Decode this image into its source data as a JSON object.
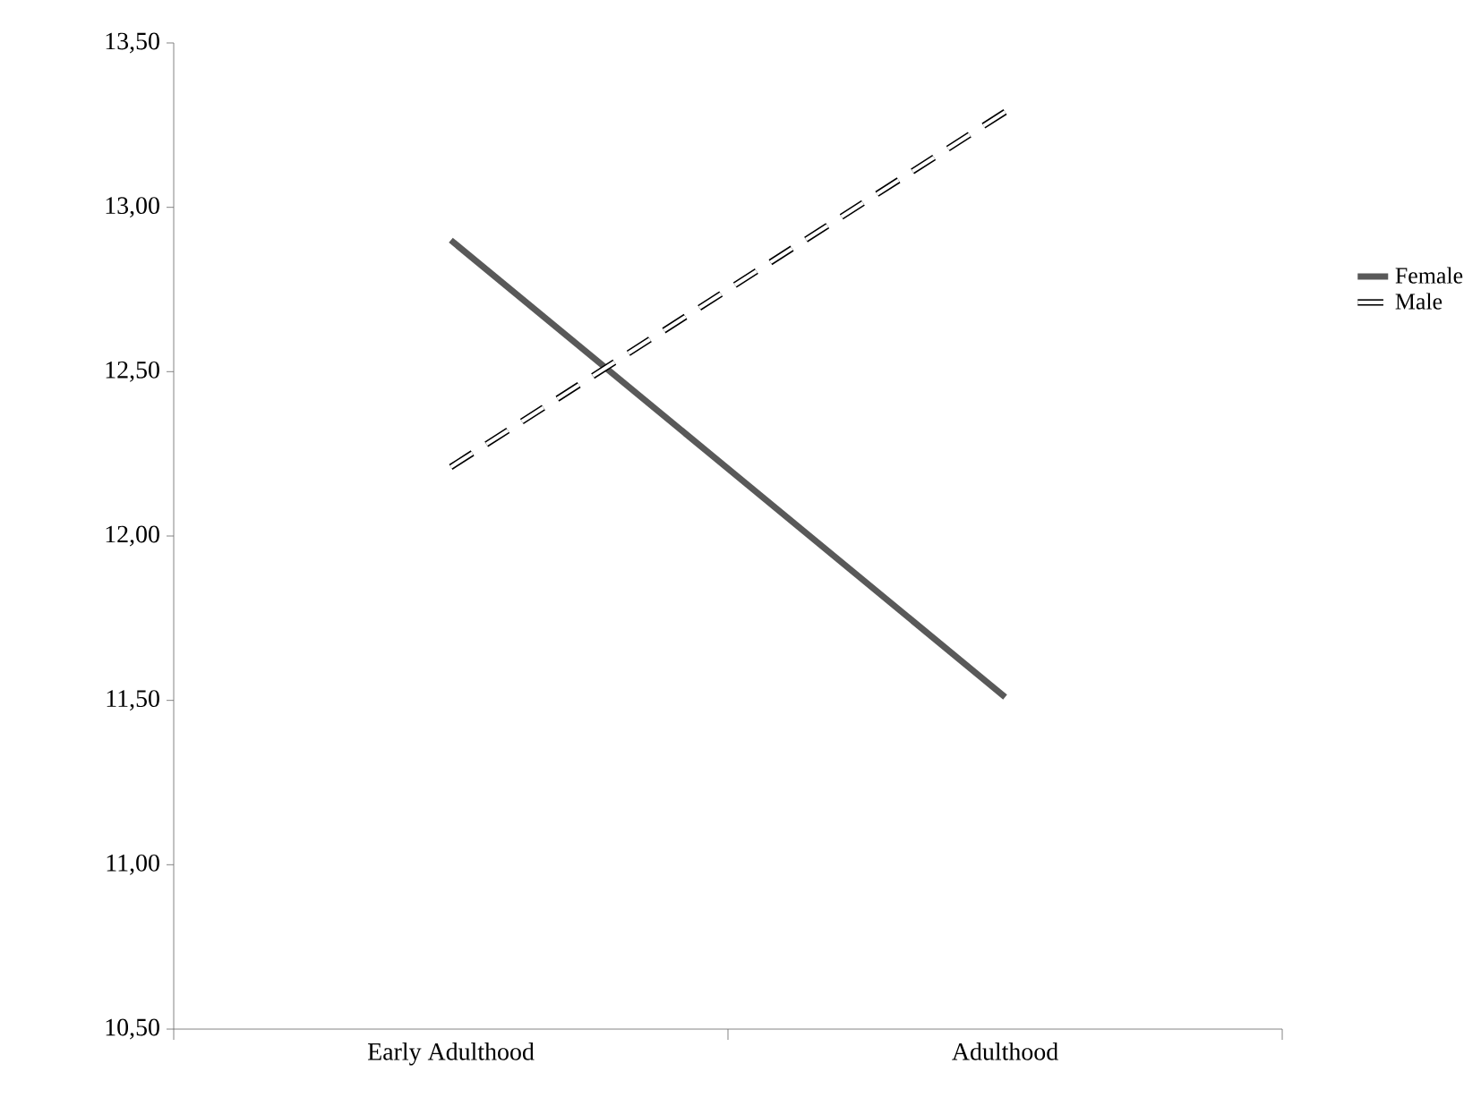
{
  "chart_data": {
    "type": "line",
    "categories": [
      "Early Adulthood",
      "Adulthood"
    ],
    "series": [
      {
        "name": "Female",
        "color": "#595959",
        "values": [
          12.9,
          11.51
        ],
        "line_style": "solid"
      },
      {
        "name": "Male",
        "color": "#000000",
        "values": [
          12.21,
          13.29
        ],
        "line_style": "dashed"
      }
    ],
    "ylim": [
      10.5,
      13.5
    ],
    "yticks": [
      {
        "value": 10.5,
        "label": "10,50"
      },
      {
        "value": 11.0,
        "label": "11,00"
      },
      {
        "value": 11.5,
        "label": "11,50"
      },
      {
        "value": 12.0,
        "label": "12,00"
      },
      {
        "value": 12.5,
        "label": "12,50"
      },
      {
        "value": 13.0,
        "label": "13,00"
      },
      {
        "value": 13.5,
        "label": "13,50"
      }
    ],
    "legend": "right",
    "grid": false
  }
}
